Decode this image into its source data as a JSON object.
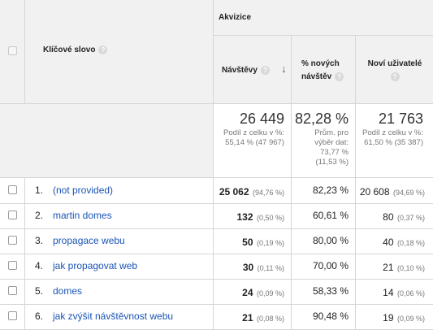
{
  "header": {
    "group": "Akvizice",
    "keyword_col": "Klíčové slovo",
    "visits_col": "Návštěvy",
    "new_visits_col_line1": "% nových",
    "new_visits_col_line2": "návštěv",
    "new_users_col": "Noví uživatelé",
    "help_glyph": "?",
    "sort_glyph": "↓"
  },
  "totals": {
    "visits": "26 449",
    "visits_sub1": "Podíl z celku v %:",
    "visits_sub2": "55,14 % (47 967)",
    "new_visits": "82,28 %",
    "new_visits_sub1": "Prům. pro",
    "new_visits_sub2": "výběr dat:",
    "new_visits_sub3": "73,77 %",
    "new_visits_sub4": "(11,53 %)",
    "new_users": "21 763",
    "new_users_sub1": "Podíl z celku v %:",
    "new_users_sub2": "61,50 % (35 387)"
  },
  "rows": [
    {
      "index": "1.",
      "keyword": "(not provided)",
      "visits": "25 062",
      "visits_pct": "(94,76 %)",
      "new_visits": "82,23 %",
      "new_users": "20 608",
      "new_users_pct": "(94,69 %)"
    },
    {
      "index": "2.",
      "keyword": "martin domes",
      "visits": "132",
      "visits_pct": "(0,50 %)",
      "new_visits": "60,61 %",
      "new_users": "80",
      "new_users_pct": "(0,37 %)"
    },
    {
      "index": "3.",
      "keyword": "propagace webu",
      "visits": "50",
      "visits_pct": "(0,19 %)",
      "new_visits": "80,00 %",
      "new_users": "40",
      "new_users_pct": "(0,18 %)"
    },
    {
      "index": "4.",
      "keyword": "jak propagovat web",
      "visits": "30",
      "visits_pct": "(0,11 %)",
      "new_visits": "70,00 %",
      "new_users": "21",
      "new_users_pct": "(0,10 %)"
    },
    {
      "index": "5.",
      "keyword": "domes",
      "visits": "24",
      "visits_pct": "(0,09 %)",
      "new_visits": "58,33 %",
      "new_users": "14",
      "new_users_pct": "(0,06 %)"
    },
    {
      "index": "6.",
      "keyword": "jak zvýšit návštěvnost webu",
      "visits": "21",
      "visits_pct": "(0,08 %)",
      "new_visits": "90,48 %",
      "new_users": "19",
      "new_users_pct": "(0,09 %)"
    }
  ]
}
